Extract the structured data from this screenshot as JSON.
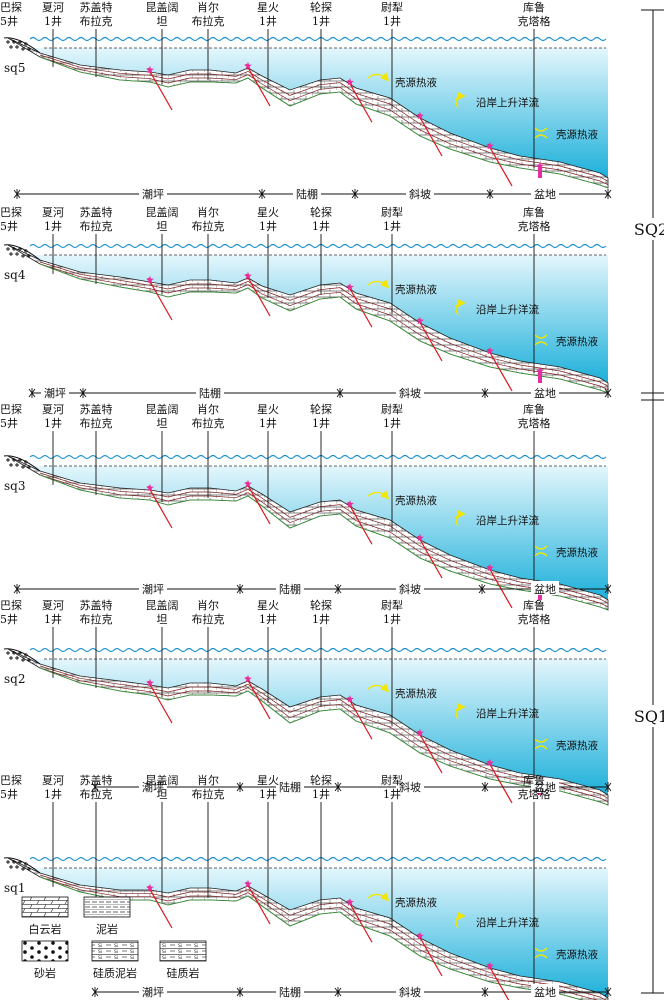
{
  "wells": [
    {
      "id": "bacan5",
      "line1": "巴探",
      "line2": "5井"
    },
    {
      "id": "xiahe1",
      "line1": "夏河",
      "line2": "1井"
    },
    {
      "id": "sugaite",
      "line1": "苏盖特",
      "line2": "布拉克"
    },
    {
      "id": "kungaikuo",
      "line1": "昆盖阔",
      "line2": "坦"
    },
    {
      "id": "xiaoer",
      "line1": "肖尔",
      "line2": "布拉克"
    },
    {
      "id": "xinghuo1",
      "line1": "星火",
      "line2": "1井"
    },
    {
      "id": "luntan1",
      "line1": "轮探",
      "line2": "1井"
    },
    {
      "id": "yuli",
      "line1": "尉犁",
      "line2": "1井"
    },
    {
      "id": "kuluketage",
      "line1": "库鲁",
      "line2": "克塔格"
    }
  ],
  "panels": [
    {
      "id": "sq5",
      "label": "sq5",
      "zones": [
        "潮坪",
        "陆棚",
        "斜坡",
        "盆地"
      ]
    },
    {
      "id": "sq4",
      "label": "sq4",
      "zones": [
        "潮坪",
        "陆棚",
        "斜坡",
        "盆地"
      ]
    },
    {
      "id": "sq3",
      "label": "sq3",
      "zones": [
        "潮坪",
        "陆棚",
        "斜坡",
        "盆地"
      ]
    },
    {
      "id": "sq2",
      "label": "sq2",
      "zones": [
        "潮坪",
        "陆棚",
        "斜坡",
        "盆地"
      ]
    },
    {
      "id": "sq1",
      "label": "sq1",
      "zones": [
        "潮坪",
        "陆棚",
        "斜坡",
        "盆地"
      ]
    }
  ],
  "annotations": {
    "shell_fluid": "壳源热液",
    "upwelling": "沿岸上升洋流"
  },
  "sequences": {
    "upper": "SQ2",
    "lower": "SQ1"
  },
  "legend": [
    {
      "id": "dolomite",
      "label": "白云岩"
    },
    {
      "id": "mudstone",
      "label": "泥岩"
    },
    {
      "id": "sandstone",
      "label": "砂岩"
    },
    {
      "id": "siliceous_mudstone",
      "label": "硅质泥岩"
    },
    {
      "id": "siliceous_rock",
      "label": "硅质岩"
    }
  ],
  "colors": {
    "water_top": "#dff4fb",
    "water_bottom": "#1fb3dc",
    "wave": "#1a8fcc",
    "fault": "#e0131b",
    "vent": "#e62ea3",
    "current_arrow": "#f2e600",
    "strata_line": "#7a2020",
    "green_line": "#3a9b3a"
  }
}
